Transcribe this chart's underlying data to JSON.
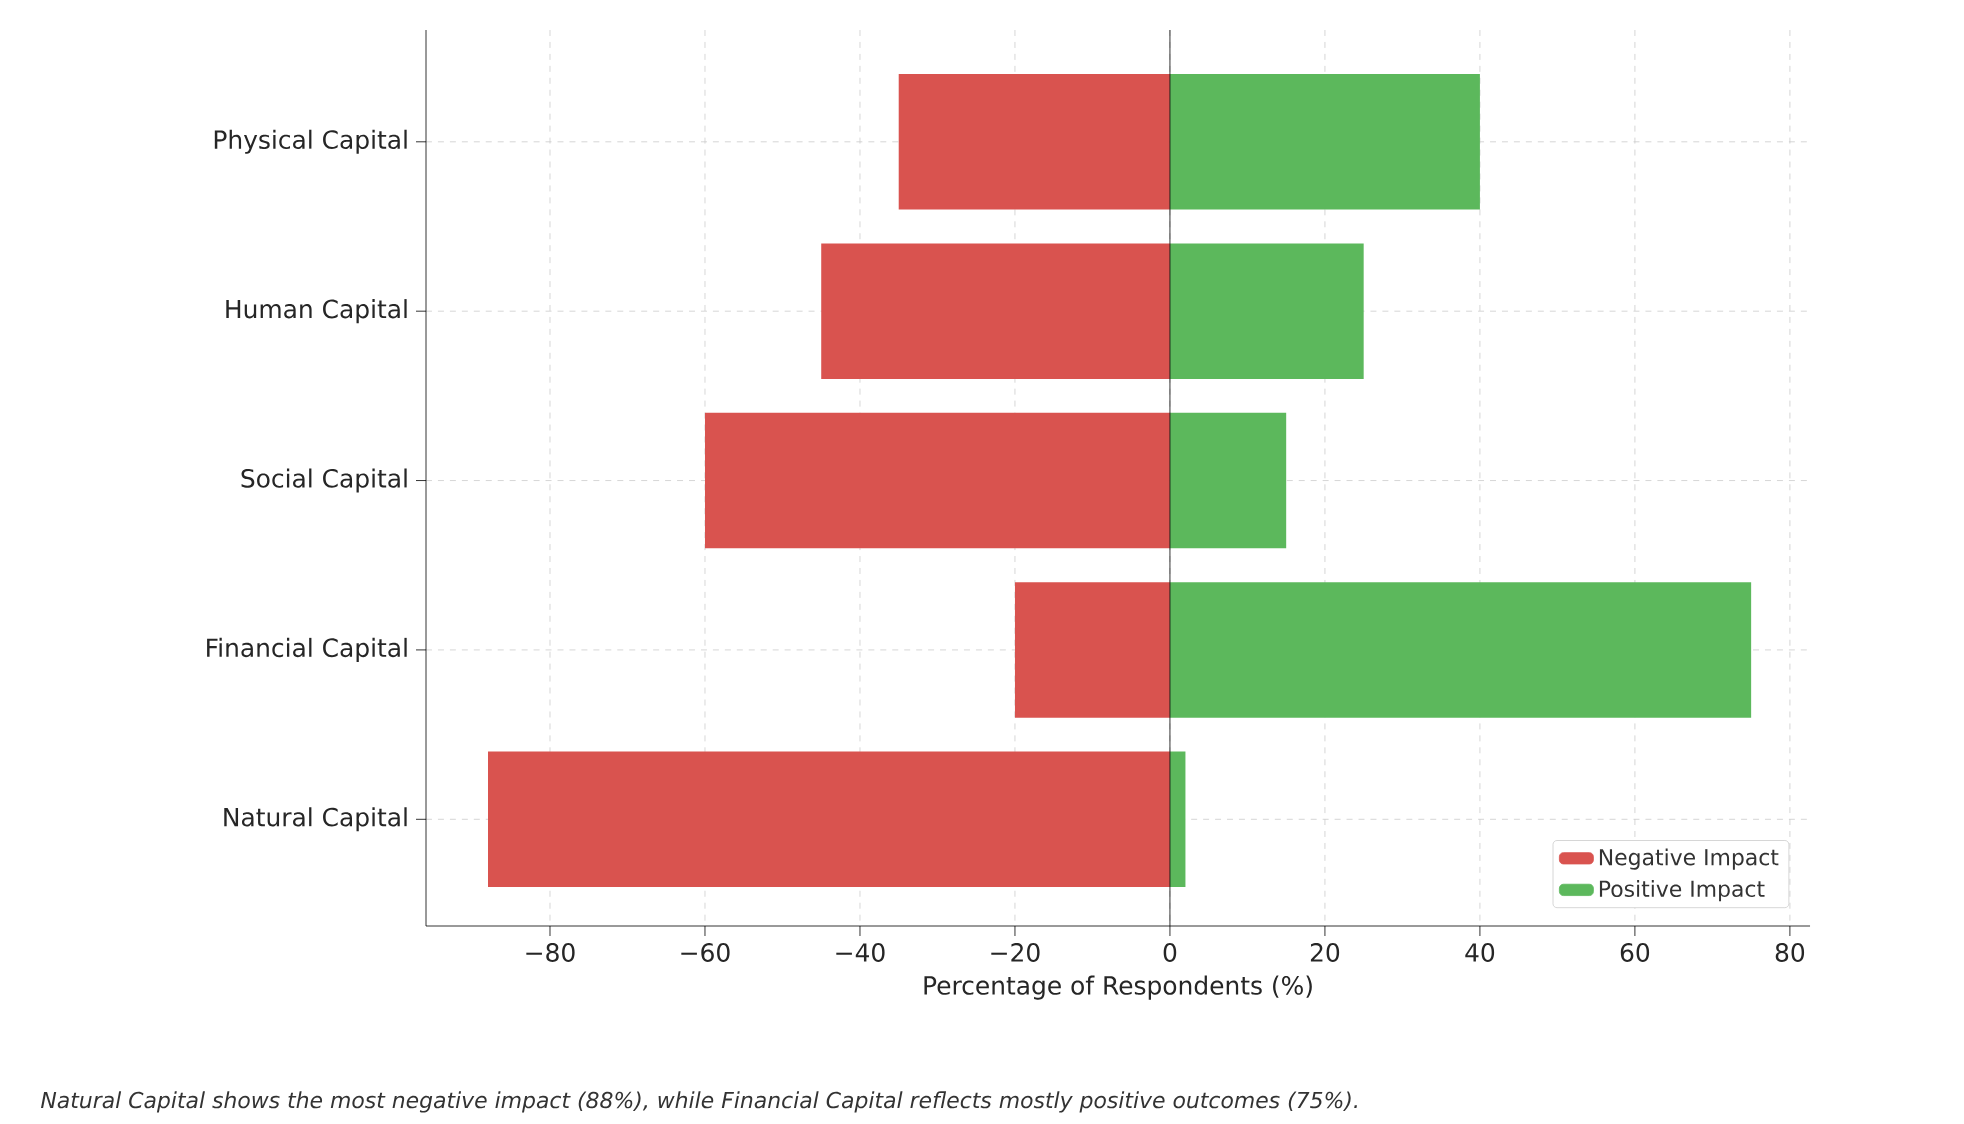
{
  "chart_data": {
    "type": "bar",
    "orientation": "horizontal",
    "stacked": true,
    "xlabel": "Percentage of Respondents (%)",
    "categories": [
      "Physical Capital",
      "Human Capital",
      "Social Capital",
      "Financial Capital",
      "Natural Capital"
    ],
    "series": [
      {
        "name": "Negative Impact",
        "color": "#d9534f",
        "values": [
          -35,
          -45,
          -60,
          -20,
          -88
        ]
      },
      {
        "name": "Positive Impact",
        "color": "#5cb85c",
        "values": [
          40,
          25,
          15,
          75,
          2
        ]
      }
    ],
    "xlim": [
      -96,
      82.6
    ],
    "xticks": [
      {
        "value": -80,
        "label": "−80"
      },
      {
        "value": -60,
        "label": "−60"
      },
      {
        "value": -40,
        "label": "−40"
      },
      {
        "value": -20,
        "label": "−20"
      },
      0,
      20,
      40,
      60,
      80
    ],
    "ref_lines": [
      {
        "axis": "x",
        "value": 0,
        "color": "#000000"
      }
    ],
    "grid": true,
    "legend": "bottom right",
    "annotations": [
      "Natural Capital shows the most negative impact (88%), while Financial Capital reflects mostly positive outcomes (75%)."
    ]
  }
}
